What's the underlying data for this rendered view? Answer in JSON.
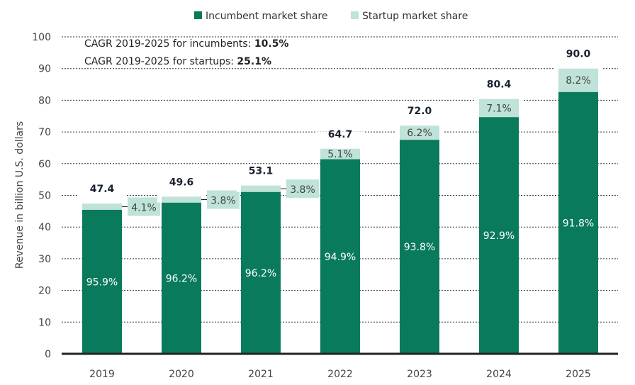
{
  "chart_data": {
    "type": "bar",
    "stacked": true,
    "categories": [
      "2019",
      "2020",
      "2021",
      "2022",
      "2023",
      "2024",
      "2025"
    ],
    "totals": [
      47.4,
      49.6,
      53.1,
      64.7,
      72.0,
      80.4,
      90.0
    ],
    "total_labels": [
      "47.4",
      "49.6",
      "53.1",
      "64.7",
      "72.0",
      "80.4",
      "90.0"
    ],
    "series": [
      {
        "name": "Incumbent market share",
        "share_labels": [
          "95.9%",
          "96.2%",
          "96.2%",
          "94.9%",
          "93.8%",
          "92.9%",
          "91.8%"
        ],
        "share": [
          95.9,
          96.2,
          96.2,
          94.9,
          93.8,
          92.9,
          91.8
        ],
        "color": "#0a7a5c"
      },
      {
        "name": "Startup market share",
        "share_labels": [
          "4.1%",
          "3.8%",
          "3.8%",
          "5.1%",
          "6.2%",
          "7.1%",
          "8.2%"
        ],
        "share": [
          4.1,
          3.8,
          3.8,
          5.1,
          6.2,
          7.1,
          8.2
        ],
        "color": "#bfe3d9"
      }
    ],
    "ylabel": "Revenue in billion U.S. dollars",
    "ylim": [
      0,
      100
    ],
    "yticks": [
      "0",
      "10",
      "20",
      "30",
      "40",
      "50",
      "60",
      "70",
      "80",
      "90",
      "100"
    ],
    "grid": true,
    "legend": "top",
    "annotations": {
      "cagr_incumbents_label": "CAGR 2019-2025 for incumbents: ",
      "cagr_incumbents_value": "10.5%",
      "cagr_startups_label": "CAGR 2019-2025 for startups: ",
      "cagr_startups_value": "25.1%"
    }
  }
}
